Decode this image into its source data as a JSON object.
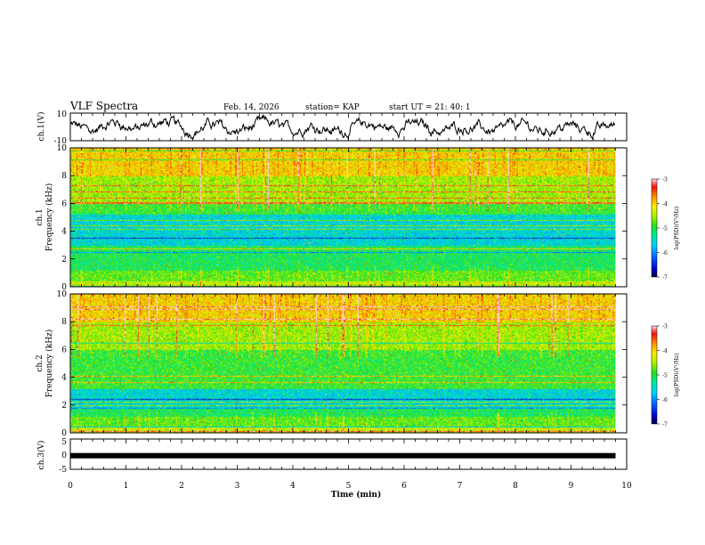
{
  "header": {
    "title": "VLF Spectra",
    "date": "Feb. 14, 2026",
    "station": "station= KAP",
    "start": "start  UT  =   21: 40: 1"
  },
  "chart_data": [
    {
      "type": "line",
      "name": "ch1-waveform",
      "ylabel": "ch.1(V)",
      "ylim": [
        -10,
        10
      ],
      "yticks": [
        "10",
        "-10"
      ],
      "xlim": [
        0,
        9.8
      ],
      "description_series": "voltage waveform, fluctuating roughly between -8 and 9 V"
    },
    {
      "type": "heatmap",
      "name": "ch1-spectrogram",
      "ylabel": "ch.1\nFrequency  (kHz)",
      "ylabel_line1": "ch.1",
      "ylabel_line2": "Frequency  (kHz)",
      "ylim": [
        0,
        10
      ],
      "yticks": [
        "0",
        "2",
        "4",
        "6",
        "8",
        "10"
      ],
      "xlim": [
        0,
        10
      ],
      "low_band_khz": [
        3.0,
        5.2
      ],
      "colorbar": {
        "label": "log(PSD)(V²/Hz)",
        "min": -7,
        "max": -3,
        "ticks": [
          "-3",
          "-4",
          "-5",
          "-6",
          "-7"
        ]
      }
    },
    {
      "type": "heatmap",
      "name": "ch2-spectrogram",
      "ylabel_line1": "ch.2",
      "ylabel_line2": "Frequency  (kHz)",
      "ylim": [
        0,
        10
      ],
      "yticks": [
        "0",
        "2",
        "4",
        "6",
        "8",
        "10"
      ],
      "xlim": [
        0,
        10
      ],
      "low_band_khz": [
        1.8,
        3.2
      ],
      "colorbar": {
        "label": "log(PSD)(V²/Hz)",
        "min": -7,
        "max": -3,
        "ticks": [
          "-3",
          "-4",
          "-5",
          "-6",
          "-7"
        ]
      }
    },
    {
      "type": "line",
      "name": "ch3-flat",
      "ylabel": "ch.3(V)",
      "ylim": [
        -5,
        5
      ],
      "yticks": [
        "5",
        "0",
        "-5"
      ],
      "x": [
        0,
        9.8
      ],
      "y": [
        -0.5,
        -0.5
      ]
    }
  ],
  "xaxis": {
    "label": "Time  (min)",
    "ticks": [
      "0",
      "1",
      "2",
      "3",
      "4",
      "5",
      "6",
      "7",
      "8",
      "9",
      "10"
    ],
    "range": [
      0,
      10
    ]
  }
}
